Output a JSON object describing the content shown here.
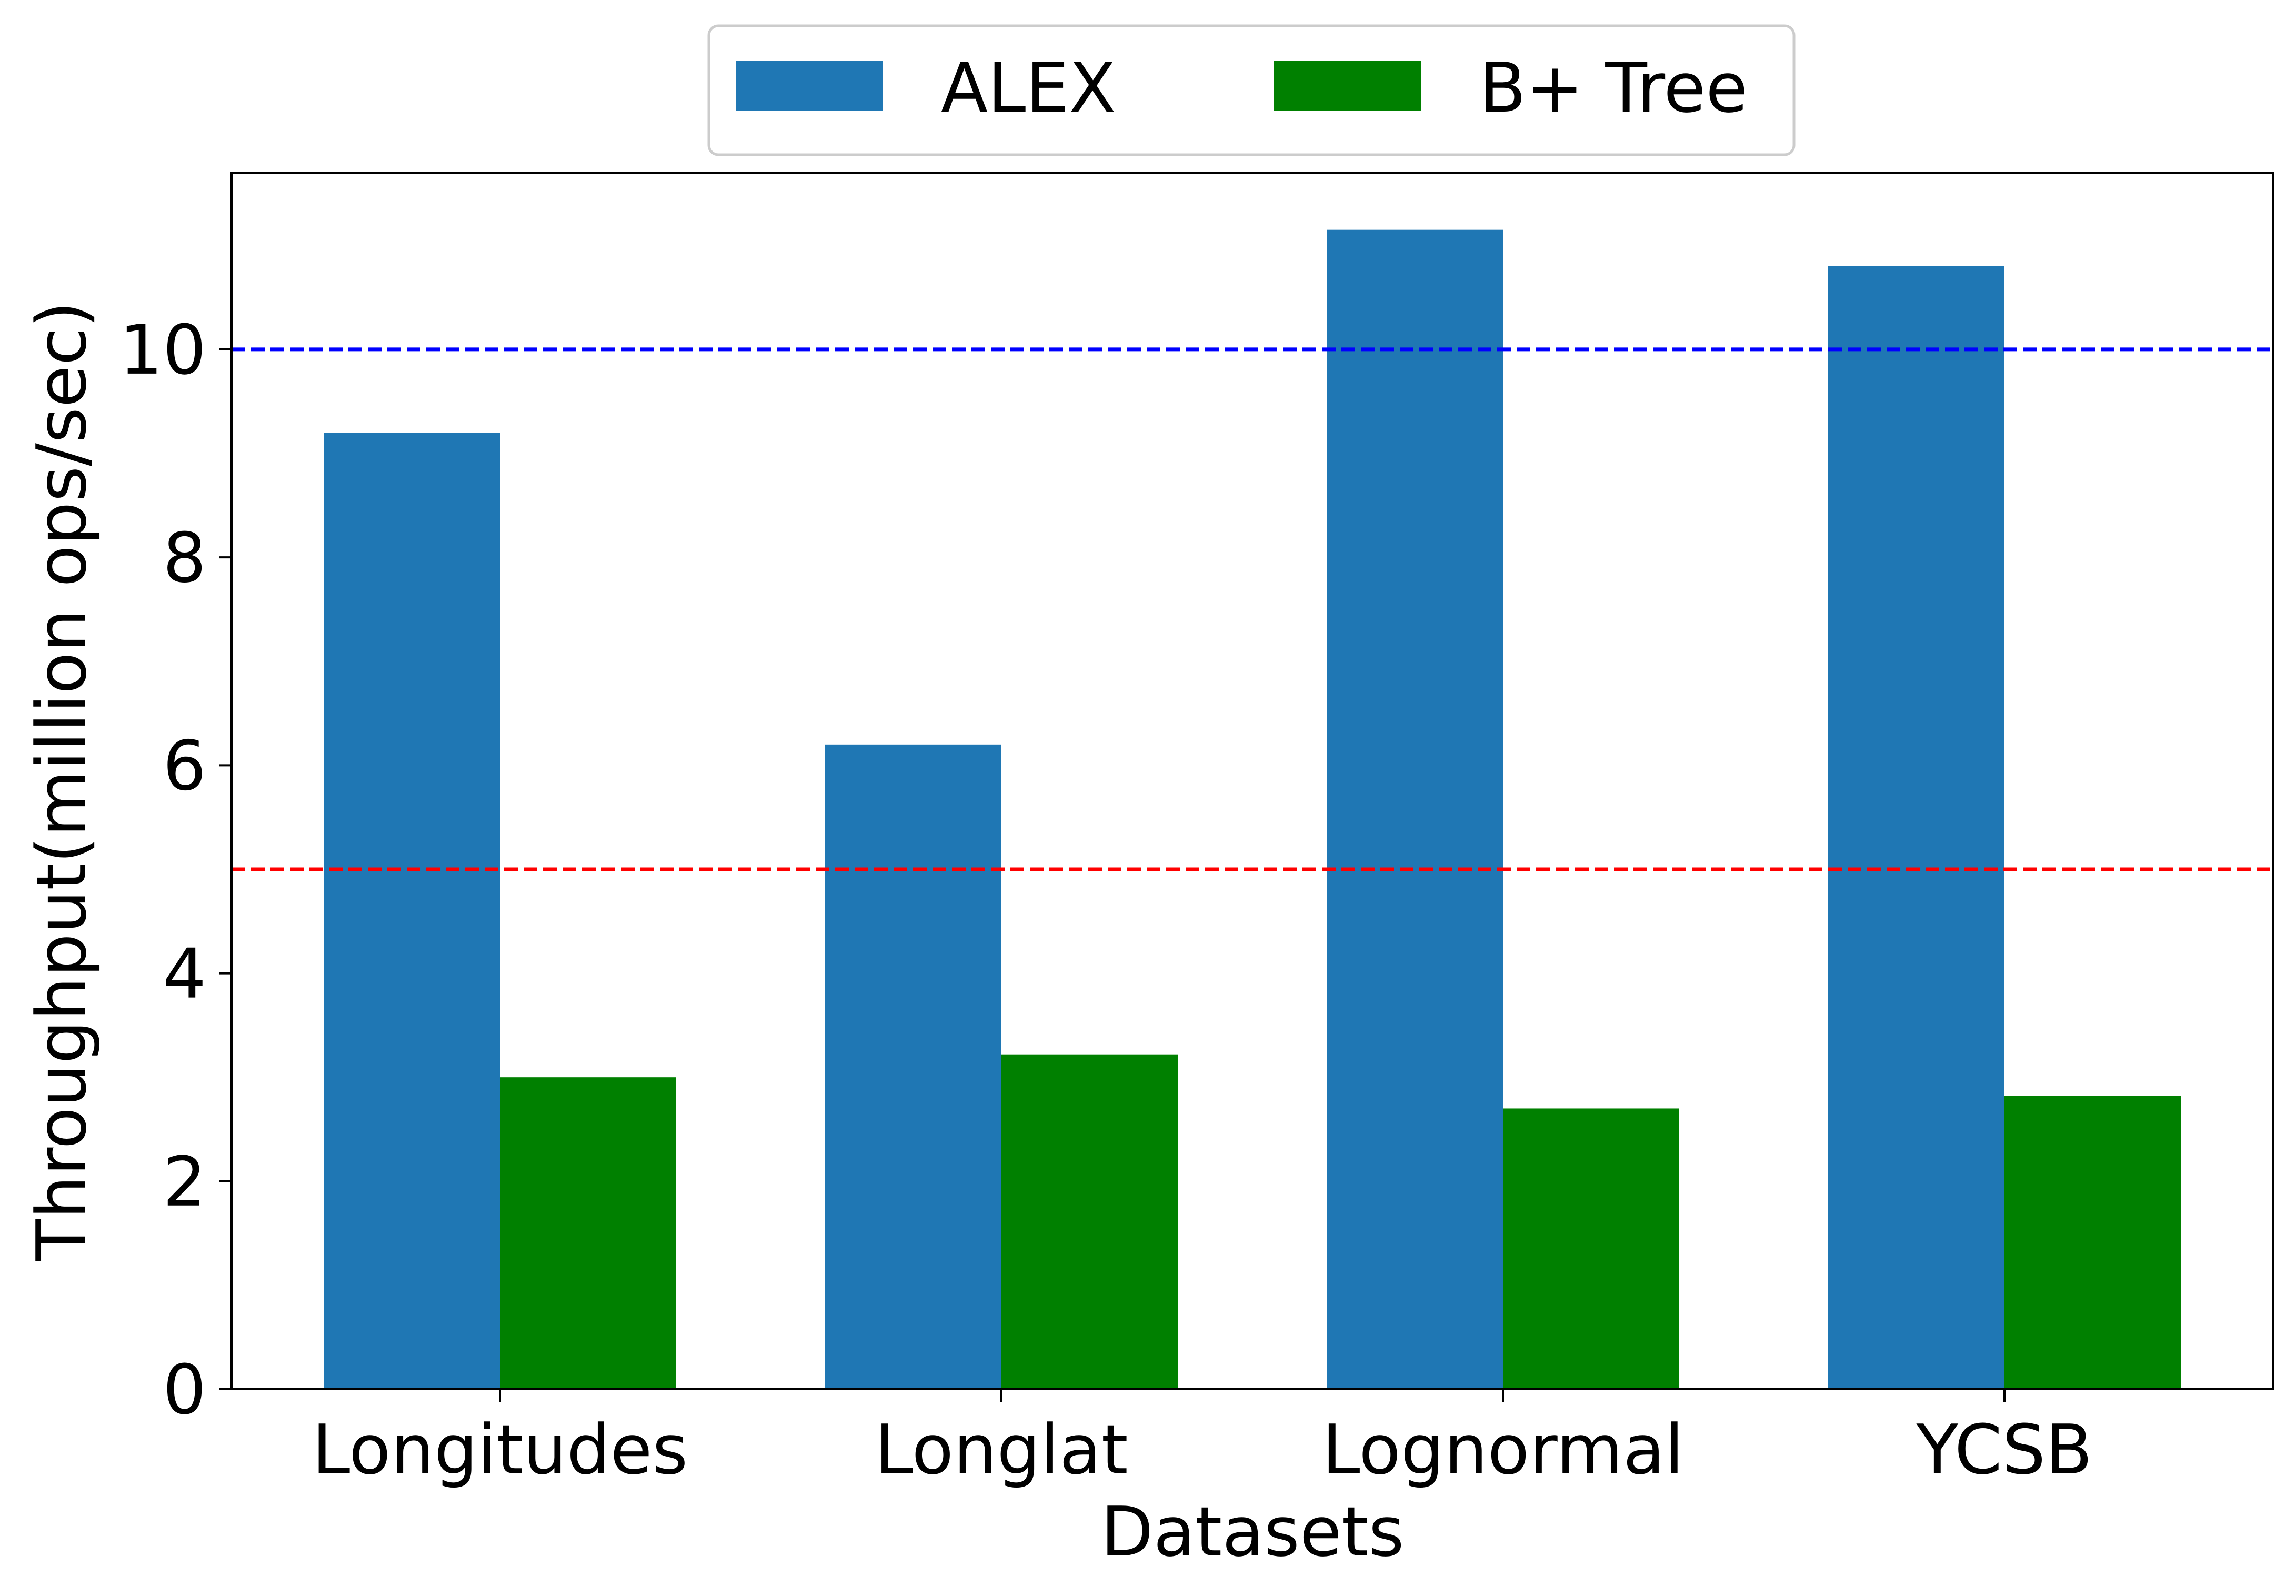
{
  "chart_data": {
    "type": "bar",
    "title": "",
    "xlabel": "Datasets",
    "ylabel": "Throughput(million ops/sec)",
    "categories": [
      "Longitudes",
      "Longlat",
      "Lognormal",
      "YCSB"
    ],
    "series": [
      {
        "name": "ALEX",
        "values": [
          9.2,
          6.2,
          11.15,
          10.8
        ],
        "color": "#1f77b4"
      },
      {
        "name": "B+ Tree",
        "values": [
          3.0,
          3.22,
          2.7,
          2.82
        ],
        "color": "#008000"
      }
    ],
    "ylim": [
      0,
      11.7
    ],
    "yticks": [
      0,
      2,
      4,
      6,
      8,
      10
    ],
    "reference_lines": [
      {
        "y": 10,
        "color": "#0000ff",
        "style": "dashed"
      },
      {
        "y": 5,
        "color": "#ff0000",
        "style": "dashed"
      }
    ],
    "grid": false,
    "legend_position": "top-center"
  }
}
